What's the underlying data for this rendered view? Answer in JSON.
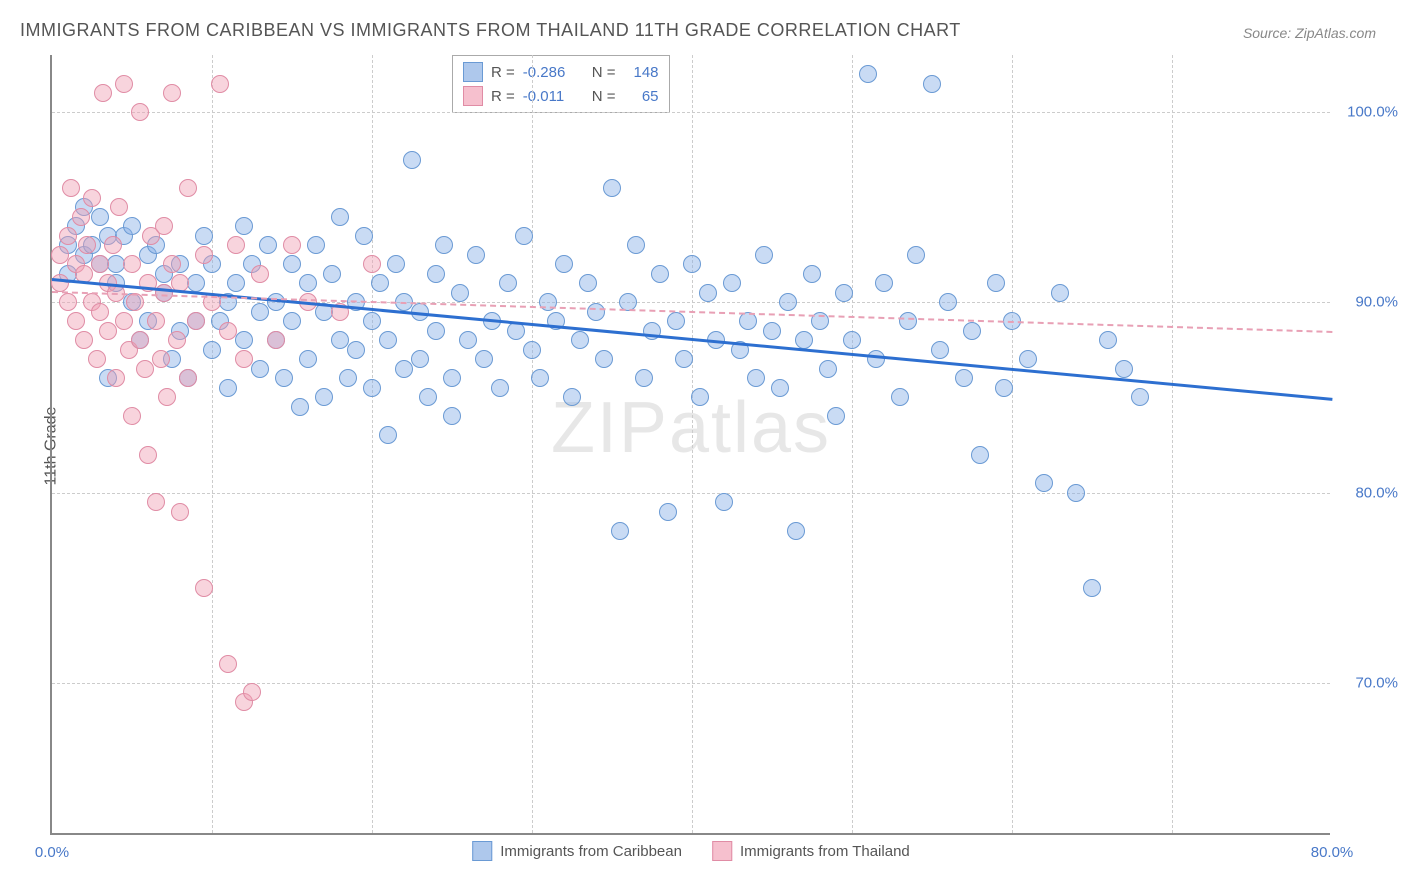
{
  "title": "IMMIGRANTS FROM CARIBBEAN VS IMMIGRANTS FROM THAILAND 11TH GRADE CORRELATION CHART",
  "source": "Source: ZipAtlas.com",
  "ylabel": "11th Grade",
  "watermark_zip": "ZIP",
  "watermark_atlas": "atlas",
  "chart": {
    "type": "scatter",
    "xlim": [
      0,
      80
    ],
    "ylim": [
      62,
      103
    ],
    "yticks": [
      {
        "value": 70,
        "label": "70.0%"
      },
      {
        "value": 80,
        "label": "80.0%"
      },
      {
        "value": 90,
        "label": "90.0%"
      },
      {
        "value": 100,
        "label": "100.0%"
      }
    ],
    "xticks": [
      {
        "value": 0,
        "label": "0.0%"
      },
      {
        "value": 10,
        "label": ""
      },
      {
        "value": 20,
        "label": ""
      },
      {
        "value": 30,
        "label": ""
      },
      {
        "value": 40,
        "label": ""
      },
      {
        "value": 50,
        "label": ""
      },
      {
        "value": 60,
        "label": ""
      },
      {
        "value": 70,
        "label": ""
      },
      {
        "value": 80,
        "label": "80.0%"
      }
    ],
    "grid_color": "#cccccc",
    "axis_color": "#888888",
    "background_color": "#ffffff",
    "point_radius": 9,
    "point_border_width": 1.5,
    "series": [
      {
        "name": "Immigrants from Caribbean",
        "fill_color": "rgba(135,175,230,0.45)",
        "stroke_color": "#6a9ad4",
        "swatch_fill": "#aec8ec",
        "swatch_stroke": "#6a9ad4",
        "R_label": "R =",
        "R": "-0.286",
        "N_label": "N =",
        "N": "148",
        "trend": {
          "x0": 0,
          "y0": 91.3,
          "x1": 80,
          "y1": 85.0,
          "color": "#2d6fd0",
          "width": 3,
          "dash": false
        },
        "points": [
          [
            1,
            93
          ],
          [
            1,
            91.5
          ],
          [
            1.5,
            94
          ],
          [
            2,
            92.5
          ],
          [
            2,
            95
          ],
          [
            2.5,
            93
          ],
          [
            3,
            92
          ],
          [
            3,
            94.5
          ],
          [
            3.5,
            86
          ],
          [
            3.5,
            93.5
          ],
          [
            4,
            92
          ],
          [
            4,
            91
          ],
          [
            4.5,
            93.5
          ],
          [
            5,
            94
          ],
          [
            5,
            90
          ],
          [
            5.5,
            88
          ],
          [
            6,
            92.5
          ],
          [
            6,
            89
          ],
          [
            6.5,
            93
          ],
          [
            7,
            90.5
          ],
          [
            7,
            91.5
          ],
          [
            7.5,
            87
          ],
          [
            8,
            92
          ],
          [
            8,
            88.5
          ],
          [
            8.5,
            86
          ],
          [
            9,
            89
          ],
          [
            9,
            91
          ],
          [
            9.5,
            93.5
          ],
          [
            10,
            87.5
          ],
          [
            10,
            92
          ],
          [
            10.5,
            89
          ],
          [
            11,
            90
          ],
          [
            11,
            85.5
          ],
          [
            11.5,
            91
          ],
          [
            12,
            94
          ],
          [
            12,
            88
          ],
          [
            12.5,
            92
          ],
          [
            13,
            86.5
          ],
          [
            13,
            89.5
          ],
          [
            13.5,
            93
          ],
          [
            14,
            90
          ],
          [
            14,
            88
          ],
          [
            14.5,
            86
          ],
          [
            15,
            92
          ],
          [
            15,
            89
          ],
          [
            15.5,
            84.5
          ],
          [
            16,
            91
          ],
          [
            16,
            87
          ],
          [
            16.5,
            93
          ],
          [
            17,
            89.5
          ],
          [
            17,
            85
          ],
          [
            17.5,
            91.5
          ],
          [
            18,
            88
          ],
          [
            18,
            94.5
          ],
          [
            18.5,
            86
          ],
          [
            19,
            90
          ],
          [
            19,
            87.5
          ],
          [
            19.5,
            93.5
          ],
          [
            20,
            89
          ],
          [
            20,
            85.5
          ],
          [
            20.5,
            91
          ],
          [
            21,
            88
          ],
          [
            21,
            83
          ],
          [
            21.5,
            92
          ],
          [
            22,
            90
          ],
          [
            22,
            86.5
          ],
          [
            22.5,
            97.5
          ],
          [
            23,
            89.5
          ],
          [
            23,
            87
          ],
          [
            23.5,
            85
          ],
          [
            24,
            91.5
          ],
          [
            24,
            88.5
          ],
          [
            24.5,
            93
          ],
          [
            25,
            86
          ],
          [
            25,
            84
          ],
          [
            25.5,
            90.5
          ],
          [
            26,
            88
          ],
          [
            26.5,
            92.5
          ],
          [
            27,
            87
          ],
          [
            27.5,
            89
          ],
          [
            28,
            85.5
          ],
          [
            28.5,
            91
          ],
          [
            29,
            88.5
          ],
          [
            29.5,
            93.5
          ],
          [
            30,
            87.5
          ],
          [
            30.5,
            86
          ],
          [
            31,
            90
          ],
          [
            31.5,
            89
          ],
          [
            32,
            92
          ],
          [
            32.5,
            85
          ],
          [
            33,
            88
          ],
          [
            33.5,
            91
          ],
          [
            34,
            89.5
          ],
          [
            34.5,
            87
          ],
          [
            35,
            96
          ],
          [
            35.5,
            78
          ],
          [
            36,
            90
          ],
          [
            36.5,
            93
          ],
          [
            37,
            86
          ],
          [
            37.5,
            88.5
          ],
          [
            38,
            91.5
          ],
          [
            38.5,
            79
          ],
          [
            39,
            89
          ],
          [
            39.5,
            87
          ],
          [
            40,
            92
          ],
          [
            40.5,
            85
          ],
          [
            41,
            90.5
          ],
          [
            41.5,
            88
          ],
          [
            42,
            79.5
          ],
          [
            42.5,
            91
          ],
          [
            43,
            87.5
          ],
          [
            43.5,
            89
          ],
          [
            44,
            86
          ],
          [
            44.5,
            92.5
          ],
          [
            45,
            88.5
          ],
          [
            45.5,
            85.5
          ],
          [
            46,
            90
          ],
          [
            46.5,
            78
          ],
          [
            47,
            88
          ],
          [
            47.5,
            91.5
          ],
          [
            48,
            89
          ],
          [
            48.5,
            86.5
          ],
          [
            49,
            84
          ],
          [
            49.5,
            90.5
          ],
          [
            50,
            88
          ],
          [
            51,
            102
          ],
          [
            51.5,
            87
          ],
          [
            52,
            91
          ],
          [
            53,
            85
          ],
          [
            53.5,
            89
          ],
          [
            54,
            92.5
          ],
          [
            55,
            101.5
          ],
          [
            55.5,
            87.5
          ],
          [
            56,
            90
          ],
          [
            57,
            86
          ],
          [
            57.5,
            88.5
          ],
          [
            58,
            82
          ],
          [
            59,
            91
          ],
          [
            59.5,
            85.5
          ],
          [
            60,
            89
          ],
          [
            61,
            87
          ],
          [
            62,
            80.5
          ],
          [
            63,
            90.5
          ],
          [
            64,
            80
          ],
          [
            65,
            75
          ],
          [
            66,
            88
          ],
          [
            67,
            86.5
          ],
          [
            68,
            85
          ]
        ]
      },
      {
        "name": "Immigrants from Thailand",
        "fill_color": "rgba(240,160,180,0.45)",
        "stroke_color": "#e08ca5",
        "swatch_fill": "#f6c0ce",
        "swatch_stroke": "#e08ca5",
        "R_label": "R =",
        "R": "-0.011",
        "N_label": "N =",
        "N": "65",
        "trend": {
          "x0": 0,
          "y0": 90.6,
          "x1": 80,
          "y1": 88.5,
          "color": "#e8a0b5",
          "width": 2,
          "dash": true
        },
        "points": [
          [
            0.5,
            92.5
          ],
          [
            0.5,
            91
          ],
          [
            1,
            93.5
          ],
          [
            1,
            90
          ],
          [
            1.2,
            96
          ],
          [
            1.5,
            92
          ],
          [
            1.5,
            89
          ],
          [
            1.8,
            94.5
          ],
          [
            2,
            91.5
          ],
          [
            2,
            88
          ],
          [
            2.2,
            93
          ],
          [
            2.5,
            90
          ],
          [
            2.5,
            95.5
          ],
          [
            2.8,
            87
          ],
          [
            3,
            92
          ],
          [
            3,
            89.5
          ],
          [
            3.2,
            101
          ],
          [
            3.5,
            91
          ],
          [
            3.5,
            88.5
          ],
          [
            3.8,
            93
          ],
          [
            4,
            86
          ],
          [
            4,
            90.5
          ],
          [
            4.2,
            95
          ],
          [
            4.5,
            89
          ],
          [
            4.5,
            101.5
          ],
          [
            4.8,
            87.5
          ],
          [
            5,
            92
          ],
          [
            5,
            84
          ],
          [
            5.2,
            90
          ],
          [
            5.5,
            88
          ],
          [
            5.5,
            100
          ],
          [
            5.8,
            86.5
          ],
          [
            6,
            91
          ],
          [
            6,
            82
          ],
          [
            6.2,
            93.5
          ],
          [
            6.5,
            89
          ],
          [
            6.5,
            79.5
          ],
          [
            6.8,
            87
          ],
          [
            7,
            94
          ],
          [
            7,
            90.5
          ],
          [
            7.2,
            85
          ],
          [
            7.5,
            92
          ],
          [
            7.5,
            101
          ],
          [
            7.8,
            88
          ],
          [
            8,
            79
          ],
          [
            8,
            91
          ],
          [
            8.5,
            86
          ],
          [
            8.5,
            96
          ],
          [
            9,
            89
          ],
          [
            9.5,
            92.5
          ],
          [
            9.5,
            75
          ],
          [
            10,
            90
          ],
          [
            10.5,
            101.5
          ],
          [
            11,
            88.5
          ],
          [
            11,
            71
          ],
          [
            11.5,
            93
          ],
          [
            12,
            87
          ],
          [
            12,
            69
          ],
          [
            12.5,
            69.5
          ],
          [
            13,
            91.5
          ],
          [
            14,
            88
          ],
          [
            15,
            93
          ],
          [
            16,
            90
          ],
          [
            18,
            89.5
          ],
          [
            20,
            92
          ]
        ]
      }
    ]
  }
}
